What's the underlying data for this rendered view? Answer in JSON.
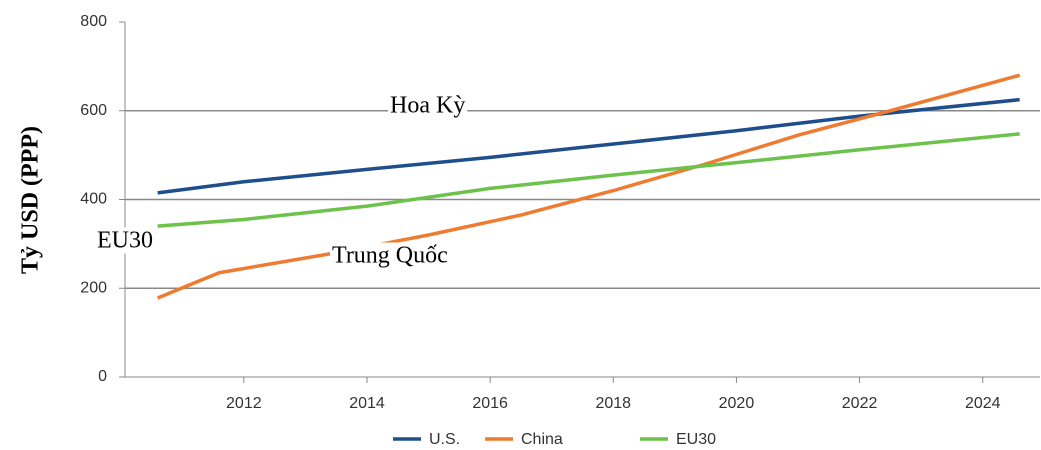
{
  "chart_data": {
    "type": "line",
    "y_label": "Tỷ USD (PPP)",
    "annotations": [
      "Hoa Kỳ",
      "EU30",
      "Trung Quốc"
    ],
    "xlim": [
      2010.07,
      2024.93
    ],
    "xticks": [
      2012,
      2014,
      2016,
      2018,
      2020,
      2022,
      2024
    ],
    "ylim": [
      0,
      800
    ],
    "yticks": [
      0,
      200,
      400,
      600,
      800
    ],
    "grid": true,
    "legend": "bottom",
    "series": [
      {
        "name": "U.S.",
        "color": "#1f4e8c",
        "x": [
          2010.6,
          2012,
          2014,
          2016,
          2018,
          2020,
          2022,
          2024.6
        ],
        "values": [
          415,
          440,
          468,
          495,
          525,
          555,
          588,
          625
        ]
      },
      {
        "name": "China",
        "color": "#ee7b30",
        "x": [
          2010.6,
          2011.6,
          2013.5,
          2015,
          2016.5,
          2018,
          2019.5,
          2021,
          2022.5,
          2024.6
        ],
        "values": [
          178,
          235,
          280,
          320,
          365,
          420,
          480,
          545,
          600,
          680
        ]
      },
      {
        "name": "EU30",
        "color": "#6cc24a",
        "x": [
          2010.6,
          2012,
          2014,
          2016,
          2018,
          2020,
          2022,
          2024.6
        ],
        "values": [
          340,
          355,
          385,
          425,
          455,
          483,
          512,
          548
        ]
      }
    ]
  }
}
